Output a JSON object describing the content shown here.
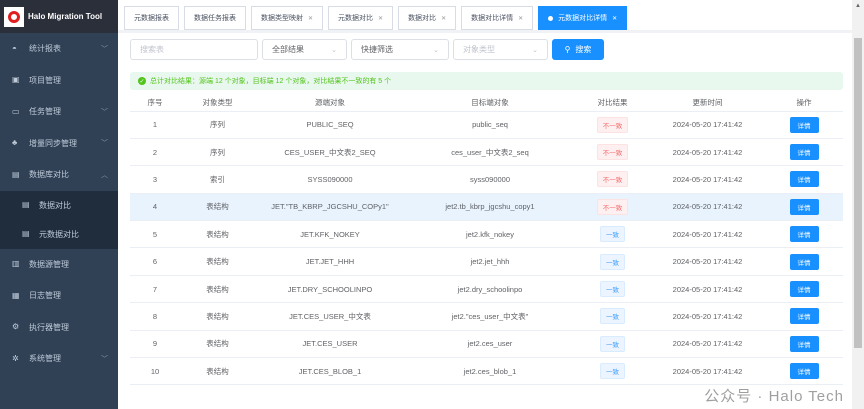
{
  "app": {
    "title": "Halo Migration Tool"
  },
  "sidebar": {
    "items": [
      {
        "label": "统计报表",
        "icon": "dashboard-icon",
        "expandable": true
      },
      {
        "label": "项目管理",
        "icon": "project-icon"
      },
      {
        "label": "任务管理",
        "icon": "monitor-icon",
        "expandable": true
      },
      {
        "label": "增量同步管理",
        "icon": "tree-icon",
        "expandable": true
      },
      {
        "label": "数据库对比",
        "icon": "database-icon",
        "expandable": true,
        "expanded": true,
        "children": [
          {
            "label": "数据对比"
          },
          {
            "label": "元数据对比"
          }
        ]
      },
      {
        "label": "数据源管理",
        "icon": "datasource-icon"
      },
      {
        "label": "日志管理",
        "icon": "log-icon"
      },
      {
        "label": "执行器管理",
        "icon": "executor-icon"
      },
      {
        "label": "系统管理",
        "icon": "settings-icon",
        "expandable": true
      }
    ]
  },
  "tabs": [
    {
      "label": "元数据报表",
      "closable": false
    },
    {
      "label": "数据任务报表",
      "closable": false
    },
    {
      "label": "数据类型映射",
      "closable": true
    },
    {
      "label": "元数据对比",
      "closable": true
    },
    {
      "label": "数据对比",
      "closable": true
    },
    {
      "label": "数据对比详情",
      "closable": true
    },
    {
      "label": "元数据对比详情",
      "closable": true,
      "active": true
    }
  ],
  "filters": {
    "search_placeholder": "搜索表",
    "result_select": "全部结果",
    "quick_filter": "快捷筛选",
    "type_placeholder": "对象类型",
    "search_button": "搜索"
  },
  "summary": "总计对比结果：源端 12 个对象，目标端 12 个对象，对比结果不一致的有 5 个",
  "table": {
    "columns": [
      "序号",
      "对象类型",
      "源端对象",
      "目标端对象",
      "对比结果",
      "更新时间",
      "操作"
    ],
    "rows": [
      [
        "1",
        "序列",
        "PUBLIC_SEQ",
        "public_seq",
        "不一致",
        "2024-05-20 17:41:42",
        "详情"
      ],
      [
        "2",
        "序列",
        "CES_USER_中文表2_SEQ",
        "ces_user_中文表2_seq",
        "不一致",
        "2024-05-20 17:41:42",
        "详情"
      ],
      [
        "3",
        "索引",
        "SYSS090000",
        "syss090000",
        "不一致",
        "2024-05-20 17:41:42",
        "详情"
      ],
      [
        "4",
        "表结构",
        "JET.\"TB_KBRP_JGCSHU_COPy1\"",
        "jet2.tb_kbrp_jgcshu_copy1",
        "不一致",
        "2024-05-20 17:41:42",
        "详情"
      ],
      [
        "5",
        "表结构",
        "JET.KFK_NOKEY",
        "jet2.kfk_nokey",
        "一致",
        "2024-05-20 17:41:42",
        "详情"
      ],
      [
        "6",
        "表结构",
        "JET.JET_HHH",
        "jet2.jet_hhh",
        "一致",
        "2024-05-20 17:41:42",
        "详情"
      ],
      [
        "7",
        "表结构",
        "JET.DRY_SCHOOLINPO",
        "jet2.dry_schoolinpo",
        "一致",
        "2024-05-20 17:41:42",
        "详情"
      ],
      [
        "8",
        "表结构",
        "JET.CES_USER_中文表",
        "jet2.\"ces_user_中文表\"",
        "一致",
        "2024-05-20 17:41:42",
        "详情"
      ],
      [
        "9",
        "表结构",
        "JET.CES_USER",
        "jet2.ces_user",
        "一致",
        "2024-05-20 17:41:42",
        "详情"
      ],
      [
        "10",
        "表结构",
        "JET.CES_BLOB_1",
        "jet2.ces_blob_1",
        "一致",
        "2024-05-20 17:41:42",
        "详情"
      ]
    ],
    "highlighted_row": 4
  },
  "watermark": "公众号 · Halo Tech",
  "colors": {
    "primary": "#1890ff",
    "sidebar": "#304156",
    "mismatch": "#f56c6c",
    "match": "#409eff",
    "success": "#52c41a"
  }
}
